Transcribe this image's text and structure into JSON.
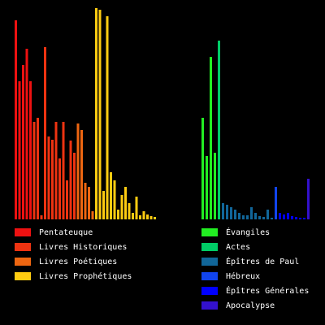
{
  "chart_data": [
    {
      "type": "bar",
      "ylim": [
        0,
        260
      ],
      "series": [
        {
          "name": "Pentateuque",
          "color": "#ee1111",
          "values": [
            245,
            170,
            190,
            210,
            170
          ]
        },
        {
          "name": "Livres Historiques",
          "color": "#ee3311",
          "values": [
            120,
            125,
            5,
            212,
            102,
            98,
            120,
            75,
            120,
            48,
            97,
            82
          ]
        },
        {
          "name": "Livres Poétiques",
          "color": "#ee6611",
          "values": [
            118,
            110,
            45,
            40,
            10
          ]
        },
        {
          "name": "Livres Prophétiques",
          "color": "#ffcc11",
          "values": [
            260,
            258,
            35,
            250,
            58,
            48,
            12,
            30,
            40,
            20,
            8,
            28,
            5,
            10,
            6,
            4,
            3
          ]
        }
      ]
    },
    {
      "type": "bar",
      "ylim": [
        0,
        260
      ],
      "series": [
        {
          "name": "Évangiles",
          "color": "#22ee22",
          "values": [
            125,
            78,
            200,
            82
          ]
        },
        {
          "name": "Actes",
          "color": "#00cc66",
          "values": [
            220
          ]
        },
        {
          "name": "Épîtres de Paul",
          "color": "#116699",
          "values": [
            20,
            18,
            15,
            12,
            8,
            5,
            5,
            15,
            8,
            4,
            3,
            12,
            2
          ]
        },
        {
          "name": "Hébreux",
          "color": "#1144ee",
          "values": [
            40
          ]
        },
        {
          "name": "Épîtres Générales",
          "color": "#0000ff",
          "values": [
            8,
            6,
            8,
            4,
            3,
            2,
            2
          ]
        },
        {
          "name": "Apocalypse",
          "color": "#3311cc",
          "values": [
            50
          ]
        }
      ]
    }
  ]
}
